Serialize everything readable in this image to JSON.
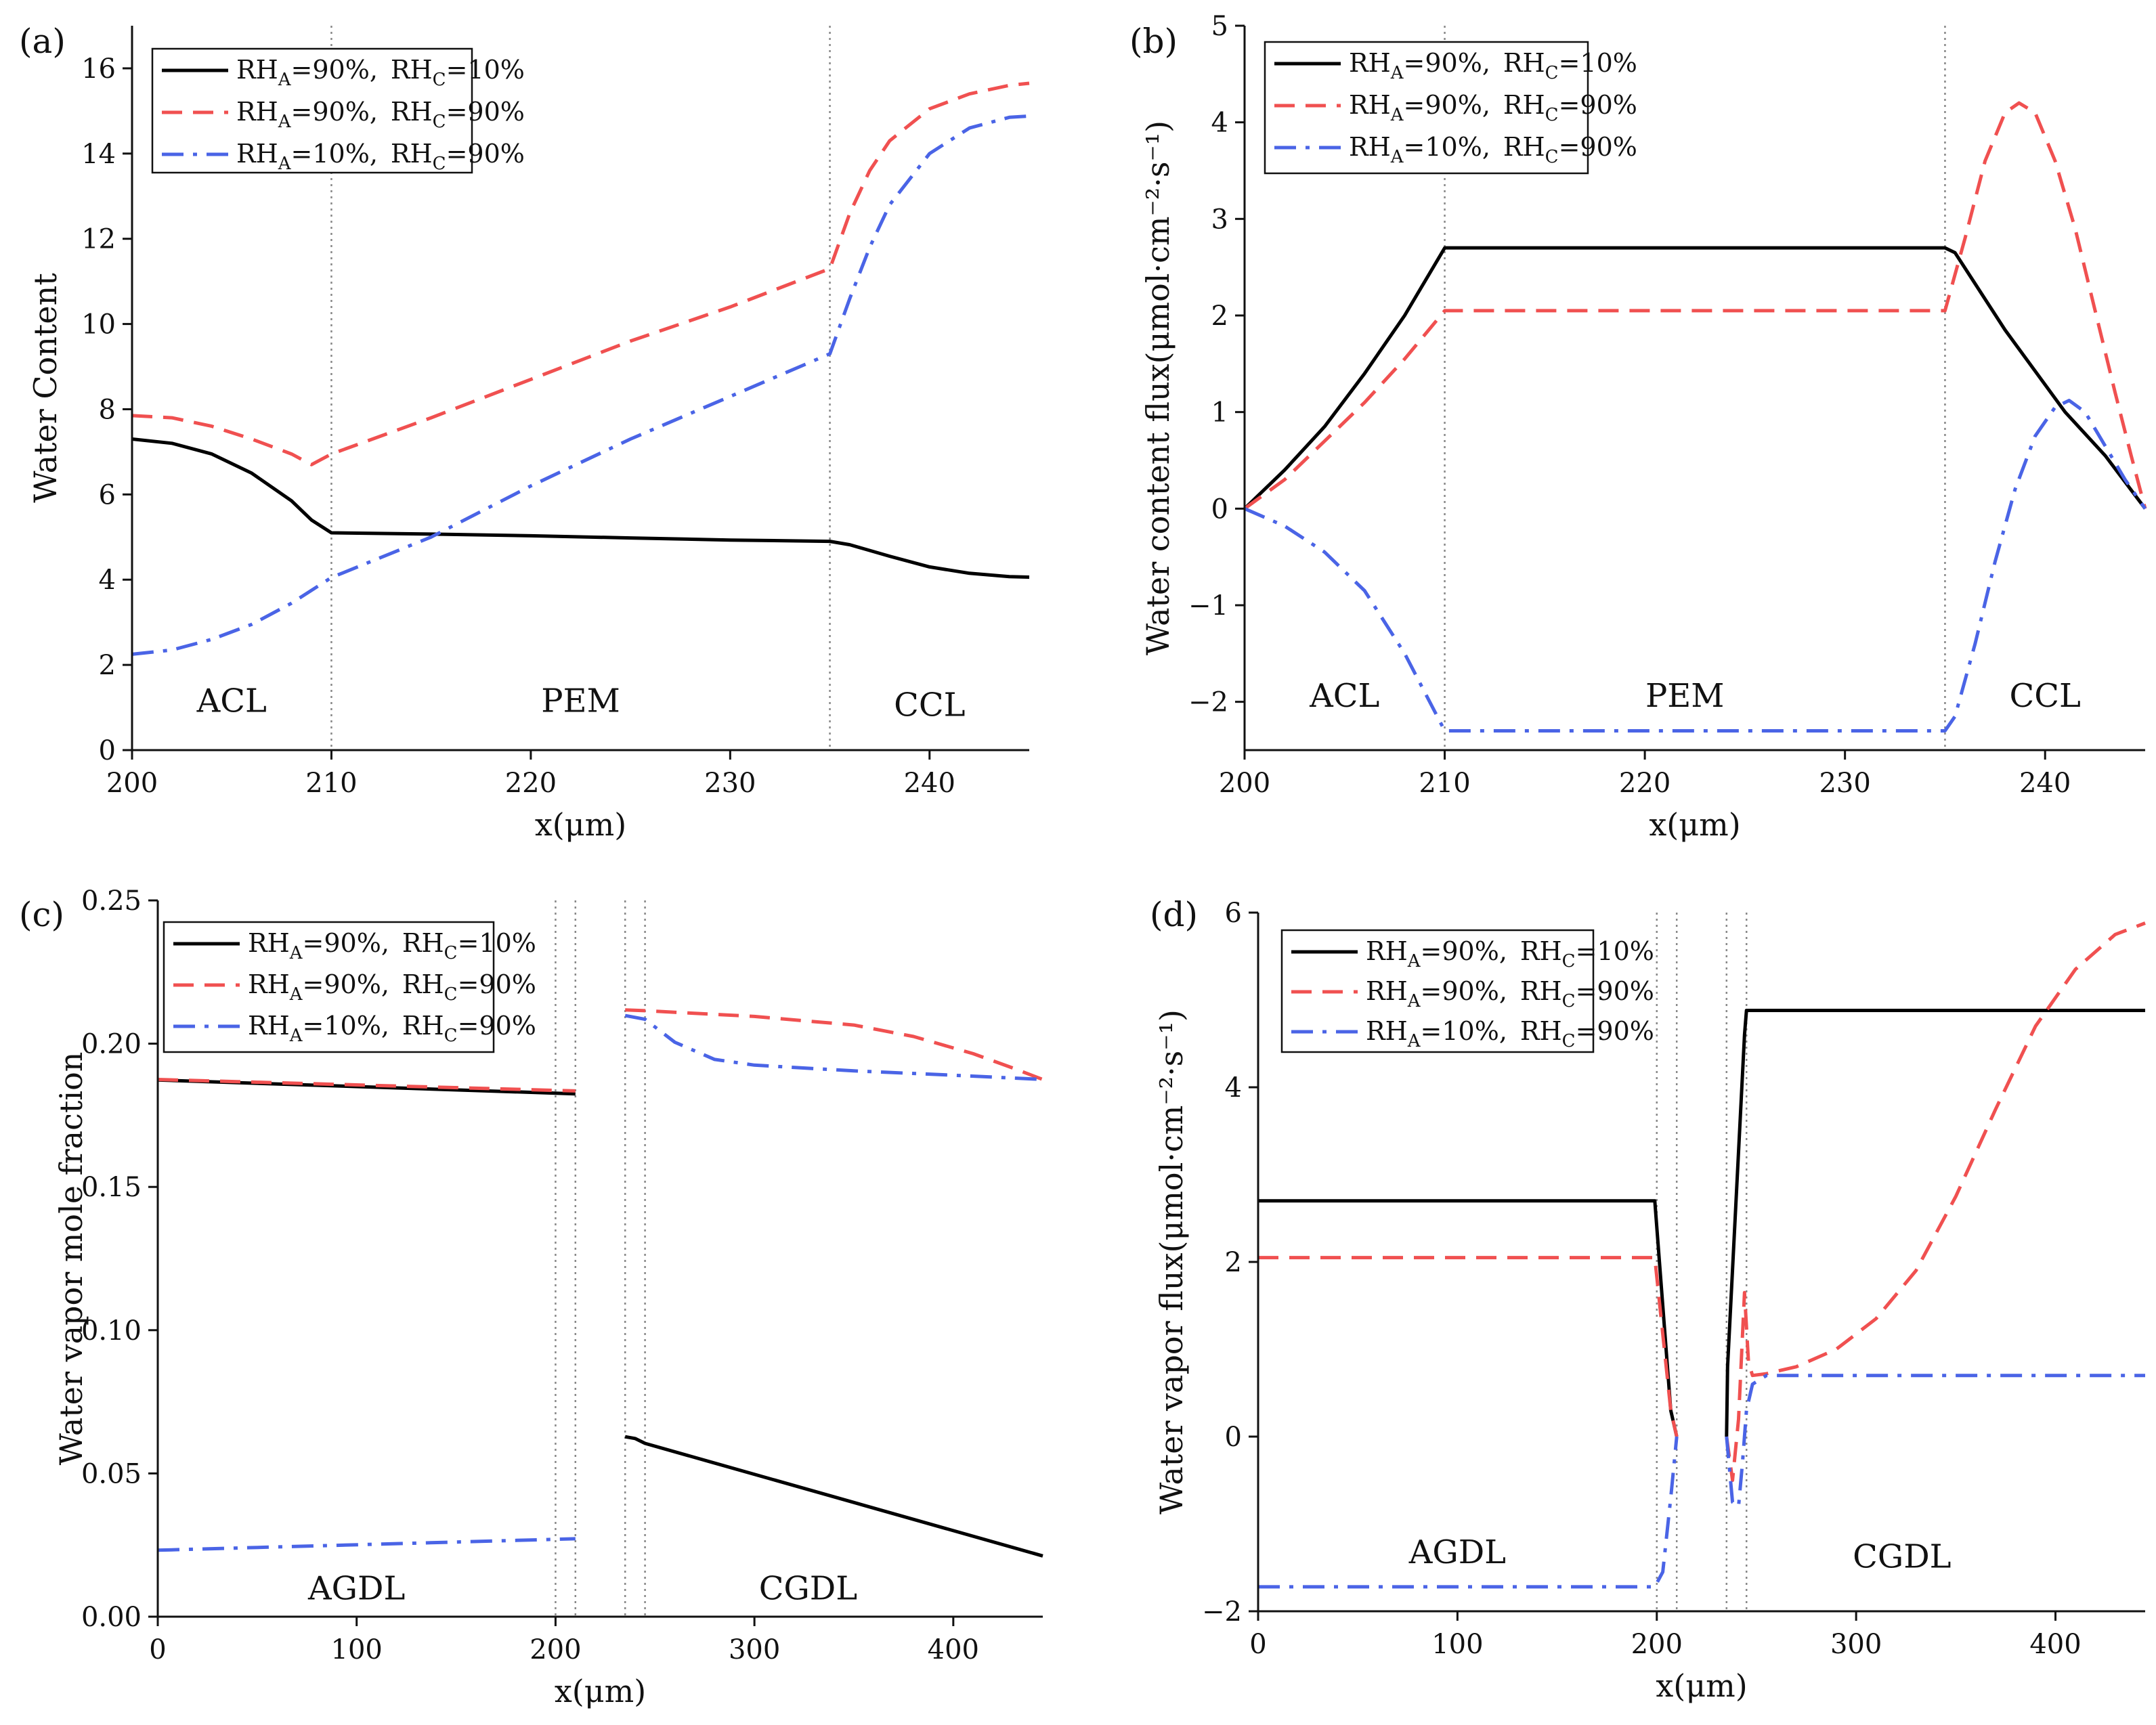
{
  "chart_data": [
    {
      "id": "a",
      "type": "line",
      "panel_label": "(a)",
      "title": "",
      "xlabel": "x(μm)",
      "ylabel": "Water Content",
      "xlim": [
        200,
        245
      ],
      "ylim": [
        0,
        17
      ],
      "xticks": [
        200,
        210,
        220,
        230,
        240
      ],
      "yticks": [
        0,
        2,
        4,
        6,
        8,
        10,
        12,
        14,
        16
      ],
      "boundaries": [
        210,
        235
      ],
      "regions": [
        {
          "label": "ACL",
          "x": 205,
          "y": 0.9
        },
        {
          "label": "PEM",
          "x": 222.5,
          "y": 0.9
        },
        {
          "label": "CCL",
          "x": 240,
          "y": 0.8
        }
      ],
      "legend": {
        "position": "top-left"
      },
      "series": [
        {
          "name": "RH_A=90%, RH_C=10%",
          "rha": "90%",
          "rhc": "10%",
          "color": "#000000",
          "dash": "solid",
          "x": [
            200,
            202,
            204,
            206,
            208,
            209,
            210,
            215,
            220,
            225,
            230,
            235,
            236,
            238,
            240,
            242,
            244,
            245
          ],
          "y": [
            7.3,
            7.2,
            6.95,
            6.5,
            5.85,
            5.4,
            5.1,
            5.07,
            5.03,
            4.98,
            4.93,
            4.9,
            4.82,
            4.55,
            4.3,
            4.15,
            4.07,
            4.06
          ]
        },
        {
          "name": "RH_A=90%, RH_C=90%",
          "rha": "90%",
          "rhc": "90%",
          "color": "#f05050",
          "dash": "dashed",
          "x": [
            200,
            202,
            204,
            206,
            208,
            209,
            210,
            215,
            220,
            225,
            230,
            235,
            236,
            237,
            238,
            240,
            242,
            244,
            245
          ],
          "y": [
            7.85,
            7.8,
            7.6,
            7.3,
            6.95,
            6.7,
            6.95,
            7.8,
            8.7,
            9.6,
            10.4,
            11.3,
            12.6,
            13.6,
            14.3,
            15.05,
            15.4,
            15.6,
            15.65
          ]
        },
        {
          "name": "RH_A=10%, RH_C=90%",
          "rha": "10%",
          "rhc": "90%",
          "color": "#4a64e6",
          "dash": "dashdot",
          "x": [
            200,
            202,
            204,
            206,
            208,
            210,
            215,
            220,
            225,
            230,
            235,
            236,
            237,
            238,
            240,
            242,
            244,
            245
          ],
          "y": [
            2.25,
            2.35,
            2.6,
            2.95,
            3.45,
            4.05,
            5.0,
            6.2,
            7.3,
            8.3,
            9.3,
            10.6,
            11.8,
            12.8,
            14.0,
            14.6,
            14.85,
            14.88
          ]
        }
      ]
    },
    {
      "id": "b",
      "type": "line",
      "panel_label": "(b)",
      "title": "",
      "xlabel": "x(μm)",
      "ylabel": "Water content flux(μmol·cm⁻²·s⁻¹)",
      "xlim": [
        200,
        245
      ],
      "ylim": [
        -2.5,
        5
      ],
      "xticks": [
        200,
        210,
        220,
        230,
        240
      ],
      "yticks": [
        -2,
        -1,
        0,
        1,
        2,
        3,
        4,
        5
      ],
      "boundaries": [
        210,
        235
      ],
      "regions": [
        {
          "label": "ACL",
          "x": 205,
          "y": -2.05
        },
        {
          "label": "PEM",
          "x": 222,
          "y": -2.05
        },
        {
          "label": "CCL",
          "x": 240,
          "y": -2.05
        }
      ],
      "legend": {
        "position": "top-left"
      },
      "series": [
        {
          "name": "RH_A=90%, RH_C=10%",
          "rha": "90%",
          "rhc": "10%",
          "color": "#000000",
          "dash": "solid",
          "x": [
            200,
            202,
            204,
            206,
            208,
            210,
            220,
            230,
            235,
            235.5,
            238,
            241,
            243,
            245
          ],
          "y": [
            0,
            0.4,
            0.85,
            1.4,
            2.0,
            2.7,
            2.7,
            2.7,
            2.7,
            2.65,
            1.85,
            1.0,
            0.55,
            0.0
          ]
        },
        {
          "name": "RH_A=90%, RH_C=90%",
          "rha": "90%",
          "rhc": "90%",
          "color": "#f05050",
          "dash": "dashed",
          "x": [
            200,
            202,
            204,
            206,
            208,
            210,
            220,
            230,
            235,
            236,
            237,
            238,
            238.7,
            239.5,
            240.5,
            241.5,
            242.5,
            243.5,
            244.3,
            245
          ],
          "y": [
            0,
            0.3,
            0.7,
            1.1,
            1.55,
            2.05,
            2.05,
            2.05,
            2.05,
            2.8,
            3.6,
            4.1,
            4.2,
            4.1,
            3.6,
            2.9,
            2.05,
            1.2,
            0.55,
            0.0
          ]
        },
        {
          "name": "RH_A=10%, RH_C=90%",
          "rha": "10%",
          "rhc": "90%",
          "color": "#4a64e6",
          "dash": "dashdot",
          "x": [
            200,
            202,
            204,
            206,
            208,
            210,
            220,
            230,
            235,
            235.5,
            236.5,
            237.5,
            238.5,
            239.5,
            240.5,
            241.2,
            242,
            243,
            244,
            245
          ],
          "y": [
            0,
            -0.18,
            -0.45,
            -0.85,
            -1.5,
            -2.3,
            -2.3,
            -2.3,
            -2.3,
            -2.15,
            -1.4,
            -0.55,
            0.2,
            0.75,
            1.05,
            1.12,
            1.0,
            0.65,
            0.3,
            0.0
          ]
        }
      ]
    },
    {
      "id": "c",
      "type": "line",
      "panel_label": "(c)",
      "title": "",
      "xlabel": "x(μm)",
      "ylabel": "Water vapor mole fraction",
      "xlim": [
        0,
        445
      ],
      "ylim": [
        0,
        0.25
      ],
      "xticks": [
        0,
        100,
        200,
        300,
        400
      ],
      "yticks": [
        0.0,
        0.05,
        0.1,
        0.15,
        0.2,
        0.25
      ],
      "ytick_labels": [
        "0.00",
        "0.05",
        "0.10",
        "0.15",
        "0.20",
        "0.25"
      ],
      "boundaries": [
        200,
        210,
        235,
        245
      ],
      "regions": [
        {
          "label": "AGDL",
          "x": 100,
          "y": 0.006
        },
        {
          "label": "CGDL",
          "x": 327,
          "y": 0.006
        }
      ],
      "legend": {
        "position": "top-left"
      },
      "series": [
        {
          "name": "RH_A=90%, RH_C=10%",
          "rha": "90%",
          "rhc": "10%",
          "color": "#000000",
          "dash": "solid",
          "segments": [
            {
              "x": [
                0,
                210
              ],
              "y": [
                0.1873,
                0.1825
              ]
            },
            {
              "x": [
                235,
                240,
                245,
                445
              ],
              "y": [
                0.0628,
                0.0622,
                0.0605,
                0.0212
              ]
            }
          ]
        },
        {
          "name": "RH_A=90%, RH_C=90%",
          "rha": "90%",
          "rhc": "90%",
          "color": "#f05050",
          "dash": "dashed",
          "segments": [
            {
              "x": [
                0,
                210
              ],
              "y": [
                0.1875,
                0.1835
              ]
            },
            {
              "x": [
                235,
                245,
                300,
                350,
                380,
                410,
                430,
                445
              ],
              "y": [
                0.2118,
                0.2115,
                0.2095,
                0.2065,
                0.2025,
                0.1965,
                0.1915,
                0.1875
              ]
            }
          ]
        },
        {
          "name": "RH_A=10%, RH_C=90%",
          "rha": "10%",
          "rhc": "90%",
          "color": "#4a64e6",
          "dash": "dashdot",
          "segments": [
            {
              "x": [
                0,
                210
              ],
              "y": [
                0.0232,
                0.0272
              ]
            },
            {
              "x": [
                235,
                245,
                260,
                280,
                300,
                350,
                400,
                445
              ],
              "y": [
                0.2098,
                0.2085,
                0.2005,
                0.1945,
                0.1925,
                0.1905,
                0.189,
                0.1875
              ]
            }
          ]
        }
      ]
    },
    {
      "id": "d",
      "type": "line",
      "panel_label": "(d)",
      "title": "",
      "xlabel": "x(μm)",
      "ylabel": "Water vapor flux(μmol·cm⁻²·s⁻¹)",
      "xlim": [
        0,
        445
      ],
      "ylim": [
        -2,
        6
      ],
      "xticks": [
        0,
        100,
        200,
        300,
        400
      ],
      "yticks": [
        -2,
        0,
        2,
        4,
        6
      ],
      "boundaries": [
        200,
        210,
        235,
        245
      ],
      "regions": [
        {
          "label": "AGDL",
          "x": 100,
          "y": -1.45
        },
        {
          "label": "CGDL",
          "x": 323,
          "y": -1.5
        }
      ],
      "legend": {
        "position": "top-left"
      },
      "series": [
        {
          "name": "RH_A=90%, RH_C=10%",
          "rha": "90%",
          "rhc": "10%",
          "color": "#000000",
          "dash": "solid",
          "segments": [
            {
              "x": [
                0,
                199,
                207,
                210
              ],
              "y": [
                2.7,
                2.7,
                0.3,
                0.0
              ]
            },
            {
              "x": [
                235,
                235.5,
                244,
                245,
                445
              ],
              "y": [
                0.0,
                0.8,
                4.6,
                4.88,
                4.88
              ]
            }
          ]
        },
        {
          "name": "RH_A=90%, RH_C=90%",
          "rha": "90%",
          "rhc": "90%",
          "color": "#f05050",
          "dash": "dashed",
          "segments": [
            {
              "x": [
                0,
                199,
                207,
                210
              ],
              "y": [
                2.05,
                2.05,
                0.3,
                0.0
              ]
            },
            {
              "x": [
                235,
                238,
                241,
                244,
                246,
                248,
                255,
                270,
                290,
                310,
                330,
                350,
                370,
                390,
                410,
                430,
                445
              ],
              "y": [
                0.0,
                -0.5,
                0.2,
                1.65,
                0.85,
                0.7,
                0.72,
                0.8,
                1.0,
                1.35,
                1.9,
                2.75,
                3.75,
                4.7,
                5.35,
                5.75,
                5.88
              ]
            }
          ]
        },
        {
          "name": "RH_A=10%, RH_C=90%",
          "rha": "10%",
          "rhc": "90%",
          "color": "#4a64e6",
          "dash": "dashdot",
          "segments": [
            {
              "x": [
                0,
                199,
                203,
                207,
                210
              ],
              "y": [
                -1.72,
                -1.72,
                -1.55,
                -0.7,
                0.0
              ]
            },
            {
              "x": [
                235,
                238,
                241,
                243,
                245,
                248,
                255,
                300,
                445
              ],
              "y": [
                0.0,
                -0.75,
                -0.8,
                -0.3,
                0.3,
                0.6,
                0.7,
                0.7,
                0.7
              ]
            }
          ]
        }
      ]
    }
  ]
}
